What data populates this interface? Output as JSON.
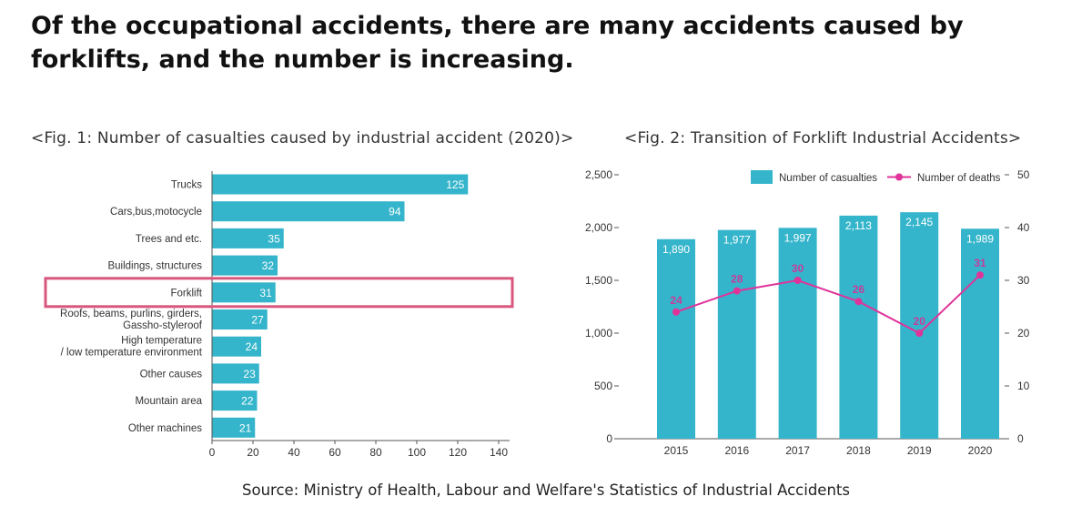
{
  "headline": "Of the occupational accidents, there are many accidents caused by forklifts, and the number is increasing.",
  "colors": {
    "bar": "#35b5cb",
    "highlight": "#d9577e",
    "deaths_line": "#e0339a",
    "death_label": "#c83b9c",
    "axis": "#555555"
  },
  "chart_data": [
    {
      "type": "bar",
      "orientation": "horizontal",
      "title": "<Fig. 1: Number of casualties caused by industrial accident (2020)>",
      "categories": [
        "Trucks",
        "Cars,bus,motocycle",
        "Trees and etc.",
        "Buildings, structures",
        "Forklift",
        "Roofs, beams, purlins, girders,\nGassho-styleroof",
        "High temperature\n/ low temperature environment",
        "Other causes",
        "Mountain area",
        "Other machines"
      ],
      "values": [
        125,
        94,
        35,
        32,
        31,
        27,
        24,
        23,
        22,
        21
      ],
      "xlim": [
        0,
        150
      ],
      "xticks": [
        0,
        20,
        40,
        60,
        80,
        100,
        120,
        140
      ],
      "highlighted_category": "Forklift",
      "grid": false
    },
    {
      "type": "bar+line",
      "title": "<Fig. 2: Transition of Forklift Industrial Accidents>",
      "categories": [
        "2015",
        "2016",
        "2017",
        "2018",
        "2019",
        "2020"
      ],
      "series": [
        {
          "name": "Number of casualties",
          "type": "bar",
          "axis": "left",
          "values": [
            1890,
            1977,
            1997,
            2113,
            2145,
            1989
          ],
          "labels": [
            "1,890",
            "1,977",
            "1,997",
            "2,113",
            "2,145",
            "1,989"
          ]
        },
        {
          "name": "Number of deaths",
          "type": "line",
          "axis": "right",
          "values": [
            24,
            28,
            30,
            26,
            20,
            31
          ],
          "labels": [
            "24",
            "28",
            "30",
            "26",
            "20",
            "31"
          ]
        }
      ],
      "ylim_left": [
        0,
        2500
      ],
      "yticks_left": [
        "0",
        "500",
        "1,000",
        "1,500",
        "2,000",
        "2,500"
      ],
      "ylim_right": [
        0,
        50
      ],
      "yticks_right": [
        "0",
        "10",
        "20",
        "30",
        "40",
        "50"
      ],
      "legend_position": "top-right",
      "grid": false
    }
  ],
  "source": "Source: Ministry of Health, Labour and Welfare's Statistics of Industrial Accidents"
}
